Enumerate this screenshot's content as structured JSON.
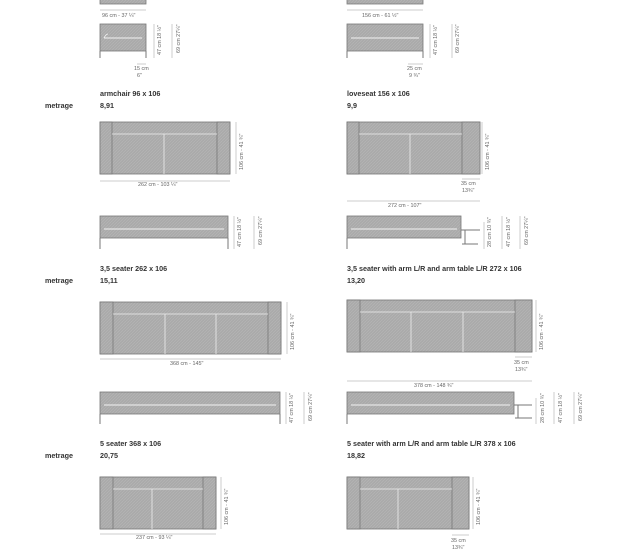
{
  "metrage_label": "metrage",
  "items": [
    {
      "title": "",
      "value": "",
      "width_dim": "96 cm - 37 ¼\"",
      "leg_dim": "15 cm\n6\"",
      "depth_dim": "",
      "heights": [
        "47 cm\n18 ½\"",
        "69 cm\n27¼\""
      ]
    },
    {
      "title": "",
      "value": "",
      "width_dim": "156 cm - 61 ½\"",
      "leg_dim": "25 cm\n9 ¾\"",
      "depth_dim": "",
      "heights": [
        "47 cm\n18 ½\"",
        "69 cm\n27¼\""
      ]
    },
    {
      "title": "armchair 96 x 106",
      "value": "8,91"
    },
    {
      "title": "loveseat 156 x 106",
      "value": "9,9"
    }
  ],
  "rows": [
    {
      "left": {
        "title": "armchair 96 x 106",
        "value": "8,91"
      },
      "right": {
        "title": "loveseat 156 x 106",
        "value": "9,9"
      }
    },
    {
      "left": {
        "title": "3,5 seater 262 x 106",
        "value": "15,11"
      },
      "right": {
        "title": "3,5 seater with arm L/R and arm table L/R 272 x 106",
        "value": "13,20"
      }
    },
    {
      "left": {
        "title": "5 seater 368 x 106",
        "value": "20,75"
      },
      "right": {
        "title": "5 seater with arm L/R and arm table L/R 378 x 106",
        "value": "18,82"
      }
    }
  ],
  "dims": {
    "top_left_width": "96 cm - 37 ¼\"",
    "top_right_width": "156 cm - 61 ½\"",
    "armchair_leg": [
      "15 cm",
      "6\""
    ],
    "loveseat_leg": [
      "25 cm",
      "9 ¾\""
    ],
    "h47": [
      "47 cm",
      "18 ½\""
    ],
    "h69": [
      "69 cm",
      "27¼\""
    ],
    "h28": [
      "28 cm",
      "10 ¾\""
    ],
    "d106": "106 cm - 41 ¾\"",
    "w262": "262 cm - 103 ¼\"",
    "w272": "272 cm - 107\"",
    "w368": "368 cm - 145\"",
    "w378": "378 cm - 148 ¾\"",
    "w237": "237 cm - 93 ¼\"",
    "arm35": [
      "35 cm",
      "13¾\""
    ]
  },
  "colors": {
    "sofa_fill": "#a8a8a8",
    "line": "#7a7a7a",
    "dim_line": "#9a9a9a"
  }
}
